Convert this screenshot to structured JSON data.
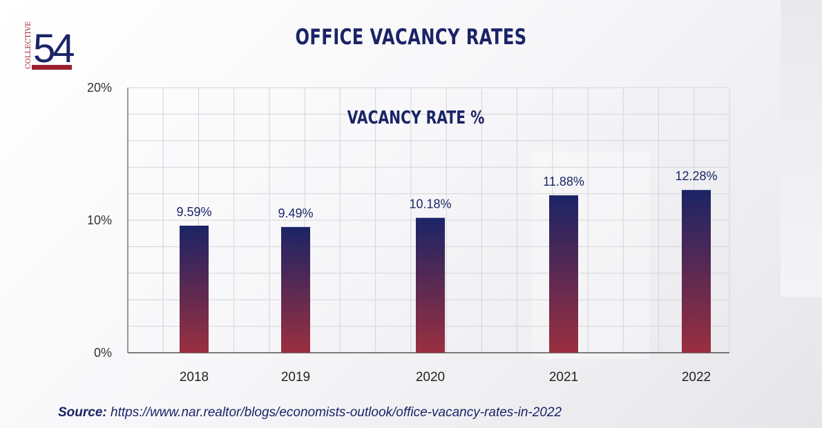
{
  "logo": {
    "word": "COLLECTIVE",
    "number": "54"
  },
  "title": "OFFICE VACANCY RATES",
  "source": {
    "label": "Source:",
    "url": "https://www.nar.realtor/blogs/economists-outlook/office-vacancy-rates-in-2022"
  },
  "colors": {
    "navy": "#1b2466",
    "bar_top": "#1b2466",
    "bar_bottom": "#9b2f3f",
    "grid": "#d4d4da"
  },
  "chart_data": {
    "type": "bar",
    "title": "VACANCY RATE %",
    "categories": [
      "2018",
      "2019",
      "2020",
      "2021",
      "2022"
    ],
    "values": [
      9.59,
      9.49,
      10.18,
      11.88,
      12.28
    ],
    "data_labels": [
      "9.59%",
      "9.49%",
      "10.18%",
      "11.88%",
      "12.28%"
    ],
    "ylim": [
      0,
      20
    ],
    "yticks": [
      0,
      10,
      20
    ],
    "ytick_labels": [
      "0%",
      "10%",
      "20%"
    ],
    "grid": true,
    "legend": "none"
  }
}
